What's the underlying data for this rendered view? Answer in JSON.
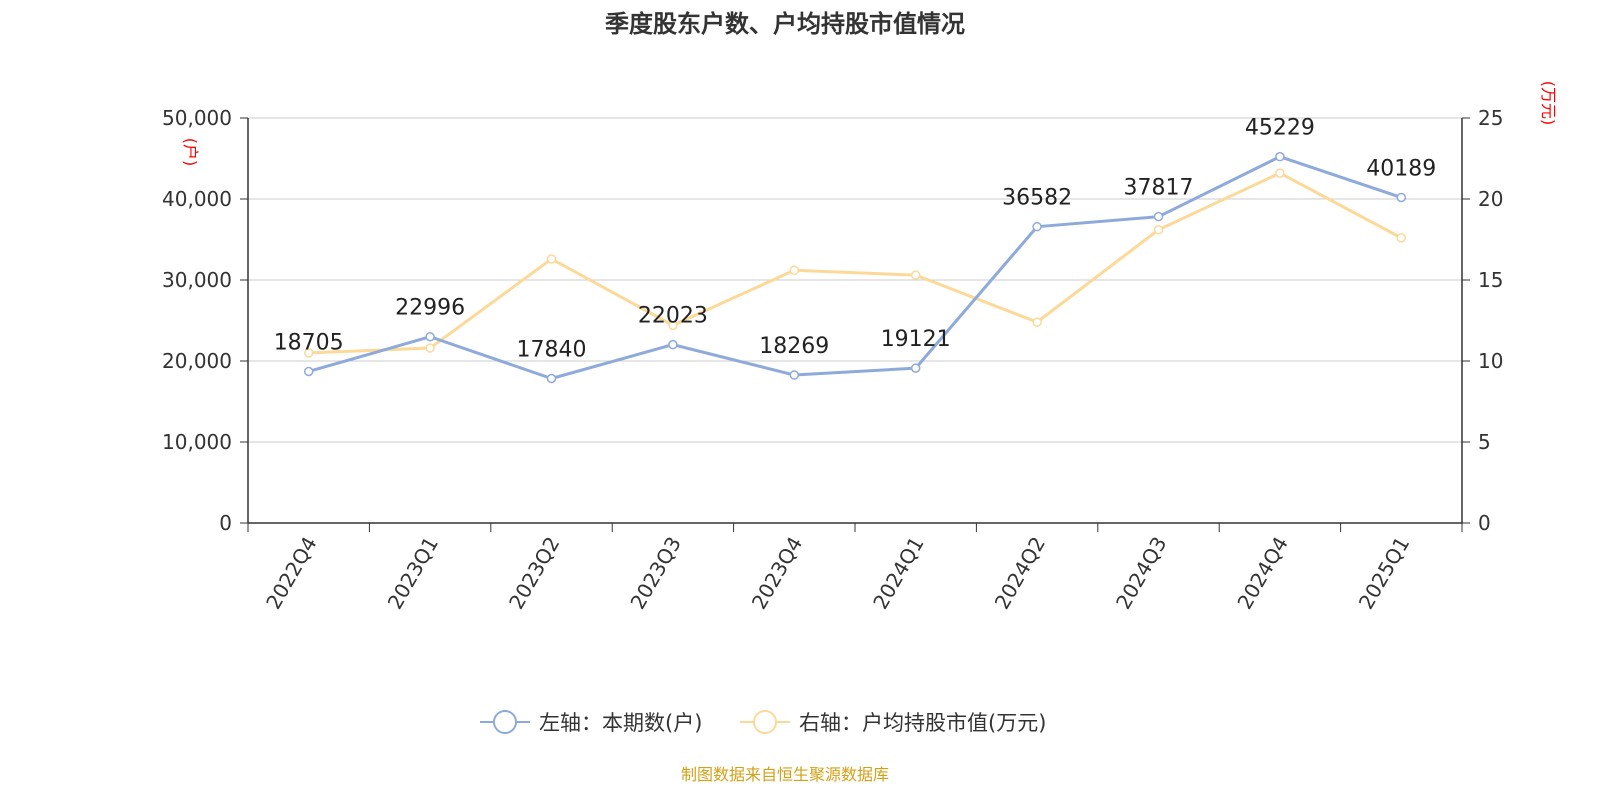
{
  "title": "季度股东户数、户均持股市值情况",
  "source": "制图数据来自恒生聚源数据库",
  "colors": {
    "series1": "#8eaadb",
    "series2": "#fcd999",
    "axis_unit": "#ff0000",
    "source": "#d4a017"
  },
  "chart_data": {
    "type": "line",
    "title": "季度股东户数、户均持股市值情况",
    "categories": [
      "2022Q4",
      "2023Q1",
      "2023Q2",
      "2023Q3",
      "2023Q4",
      "2024Q1",
      "2024Q2",
      "2024Q3",
      "2024Q4",
      "2025Q1"
    ],
    "y_left": {
      "unit": "(户)",
      "range": [
        0,
        50000
      ],
      "ticks": [
        "0",
        "10,000",
        "20,000",
        "30,000",
        "40,000",
        "50,000"
      ]
    },
    "y_right": {
      "unit": "(万元)",
      "range": [
        0,
        25
      ],
      "ticks": [
        "0",
        "5",
        "10",
        "15",
        "20",
        "25"
      ]
    },
    "grid": true,
    "legend_position": "bottom",
    "series": [
      {
        "name": "左轴：本期数(户)",
        "axis": "left",
        "color": "#8eaadb",
        "values": [
          18705,
          22996,
          17840,
          22023,
          18269,
          19121,
          36582,
          37817,
          45229,
          40189
        ],
        "labels": [
          "18705",
          "22996",
          "17840",
          "22023",
          "18269",
          "19121",
          "36582",
          "37817",
          "45229",
          "40189"
        ]
      },
      {
        "name": "右轴：户均持股市值(万元)",
        "axis": "right",
        "color": "#fcd999",
        "values": [
          10.5,
          10.8,
          16.3,
          12.2,
          15.6,
          15.3,
          12.4,
          18.1,
          21.6,
          17.6
        ]
      }
    ]
  }
}
